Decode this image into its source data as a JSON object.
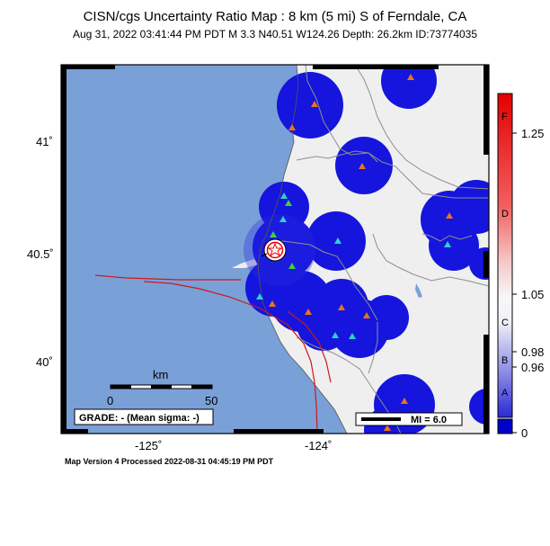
{
  "header": {
    "title": "CISN/cgs Uncertainty Ratio Map : 8 km (5 mi) S of Ferndale, CA",
    "subtitle": "Aug 31, 2022 03:41:44 PM PDT    M 3.3    N40.51 W124.26    Depth: 26.2km    ID:73774035"
  },
  "footer": "Map Version 4 Processed 2022-08-31 04:45:19 PM PDT",
  "map": {
    "lat_labels": [
      "41˚",
      "40.5˚",
      "40˚"
    ],
    "lon_labels": [
      "-125˚",
      "-124˚"
    ],
    "scale": {
      "title": "km",
      "start": "0",
      "end": "50"
    },
    "grade_label": "GRADE: - (Mean sigma: -)",
    "mi_label": "MI = 6.0"
  },
  "colorbar": {
    "values": [
      "1.25",
      "1.05",
      "0.98",
      "0.96",
      "0"
    ],
    "grades": [
      "F",
      "D",
      "C",
      "B",
      "A"
    ],
    "colors": {
      "top": "#e8000a",
      "mid": "#f7f7f7",
      "bottom": "#1f1fcf",
      "base": "#0000cc"
    }
  },
  "colors": {
    "ocean": "#7aa0d8",
    "land": "#efefef",
    "coverage": "#1515dd",
    "fault": "#cc1a1a",
    "border": "#8f8f8f",
    "station_orange": "#e8741c",
    "station_cyan": "#2dd2c8",
    "station_green": "#3cd23c"
  }
}
